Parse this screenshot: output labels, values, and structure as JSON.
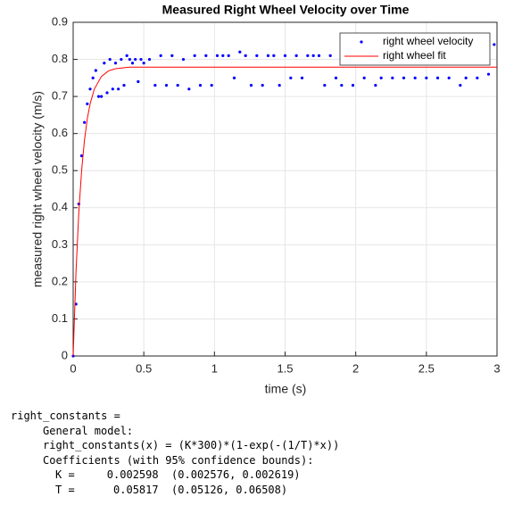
{
  "chart_data": {
    "type": "scatter",
    "title": "Measured Right Wheel Velocity over Time",
    "xlabel": "time (s)",
    "ylabel": "measured right wheel velocity (m/s)",
    "xlim": [
      0,
      3
    ],
    "xticks": [
      0,
      0.5,
      1,
      1.5,
      2,
      2.5,
      3
    ],
    "ylim": [
      0,
      0.9
    ],
    "yticks": [
      0,
      0.1,
      0.2,
      0.3,
      0.4,
      0.5,
      0.6,
      0.7,
      0.8,
      0.9
    ],
    "grid": true,
    "legend": "top-right",
    "series": [
      {
        "name": "right wheel velocity",
        "color": "#0000ff",
        "mode": "markers",
        "x": [
          0,
          0.02,
          0.04,
          0.06,
          0.08,
          0.1,
          0.12,
          0.14,
          0.16,
          0.18,
          0.2,
          0.22,
          0.24,
          0.26,
          0.28,
          0.3,
          0.32,
          0.34,
          0.36,
          0.38,
          0.4,
          0.42,
          0.44,
          0.46,
          0.48,
          0.5,
          0.54,
          0.58,
          0.62,
          0.66,
          0.7,
          0.74,
          0.78,
          0.82,
          0.86,
          0.9,
          0.94,
          0.98,
          1.02,
          1.06,
          1.1,
          1.14,
          1.18,
          1.22,
          1.26,
          1.3,
          1.34,
          1.38,
          1.42,
          1.46,
          1.5,
          1.54,
          1.58,
          1.62,
          1.66,
          1.7,
          1.74,
          1.78,
          1.82,
          1.86,
          1.9,
          1.94,
          1.98,
          2.02,
          2.06,
          2.1,
          2.14,
          2.18,
          2.22,
          2.26,
          2.3,
          2.34,
          2.38,
          2.42,
          2.46,
          2.5,
          2.54,
          2.58,
          2.62,
          2.66,
          2.7,
          2.74,
          2.78,
          2.82,
          2.86,
          2.9,
          2.94,
          2.98
        ],
        "values": [
          0,
          0.14,
          0.41,
          0.54,
          0.63,
          0.68,
          0.72,
          0.75,
          0.77,
          0.7,
          0.7,
          0.79,
          0.71,
          0.8,
          0.72,
          0.79,
          0.72,
          0.8,
          0.73,
          0.81,
          0.8,
          0.79,
          0.8,
          0.74,
          0.8,
          0.79,
          0.8,
          0.73,
          0.81,
          0.73,
          0.81,
          0.73,
          0.8,
          0.72,
          0.81,
          0.73,
          0.81,
          0.73,
          0.81,
          0.81,
          0.81,
          0.75,
          0.82,
          0.81,
          0.73,
          0.81,
          0.73,
          0.81,
          0.81,
          0.73,
          0.81,
          0.75,
          0.81,
          0.75,
          0.81,
          0.81,
          0.81,
          0.73,
          0.81,
          0.75,
          0.73,
          0.81,
          0.73,
          0.81,
          0.75,
          0.81,
          0.73,
          0.75,
          0.81,
          0.75,
          0.81,
          0.75,
          0.81,
          0.75,
          0.81,
          0.75,
          0.81,
          0.75,
          0.81,
          0.75,
          0.81,
          0.73,
          0.75,
          0.81,
          0.75,
          0.81,
          0.76,
          0.84
        ]
      },
      {
        "name": "right wheel fit",
        "color": "#ff0000",
        "mode": "line",
        "x": [
          0,
          0.02,
          0.04,
          0.06,
          0.08,
          0.1,
          0.12,
          0.15,
          0.2,
          0.25,
          0.3,
          0.4,
          3
        ],
        "values": [
          0,
          0.227,
          0.388,
          0.501,
          0.582,
          0.64,
          0.68,
          0.72,
          0.754,
          0.769,
          0.775,
          0.779,
          0.779
        ]
      }
    ]
  },
  "console": {
    "lines": [
      "right_constants =",
      "General model:",
      "right_constants(x) = (K*300)*(1-exp(-(1/T)*x))",
      "Coefficients (with 95% confidence bounds):",
      "K =     0.002598  (0.002576, 0.002619)",
      "T =      0.05817  (0.05126, 0.06508)"
    ],
    "indents": [
      0,
      1,
      1,
      1,
      2,
      2
    ]
  }
}
